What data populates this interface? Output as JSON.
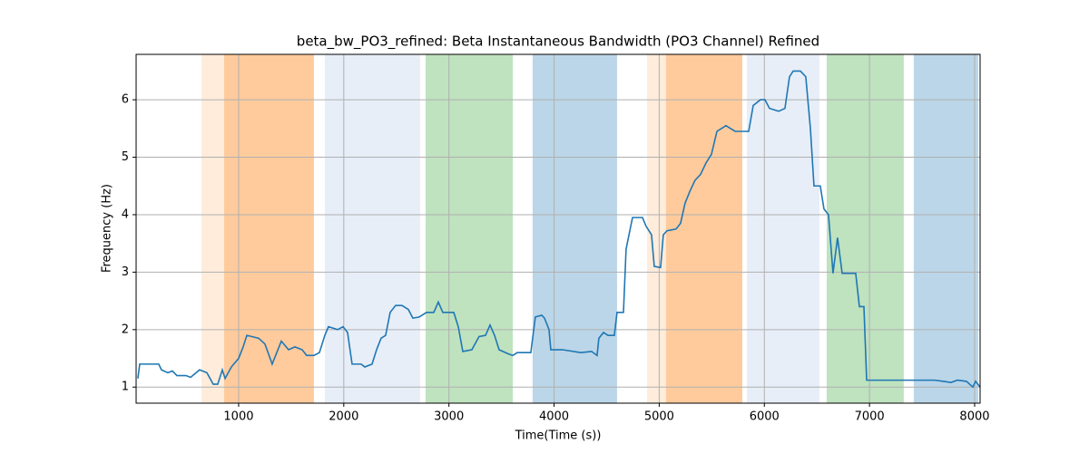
{
  "chart_data": {
    "type": "line",
    "title": "beta_bw_PO3_refined: Beta Instantaneous Bandwidth (PO3 Channel) Refined",
    "xlabel": "Time(Time (s))",
    "ylabel": "Frequency (Hz)",
    "xlim": [
      25,
      8052
    ],
    "ylim": [
      0.72,
      6.79
    ],
    "xticks": [
      1000,
      2000,
      3000,
      4000,
      5000,
      6000,
      7000,
      8000
    ],
    "yticks": [
      1,
      2,
      3,
      4,
      5,
      6
    ],
    "grid": true,
    "spans": [
      {
        "start": 646,
        "end": 1716,
        "color": "#ff7f0e",
        "alpha": 0.15
      },
      {
        "start": 862,
        "end": 1716,
        "color": "#ff7f0e",
        "alpha": 0.3
      },
      {
        "start": 1820,
        "end": 2726,
        "color": "#aec7e8",
        "alpha": 0.3
      },
      {
        "start": 2778,
        "end": 3607,
        "color": "#2ca02c",
        "alpha": 0.3
      },
      {
        "start": 3796,
        "end": 4599,
        "color": "#1f77b4",
        "alpha": 0.3
      },
      {
        "start": 4884,
        "end": 5790,
        "color": "#ff7f0e",
        "alpha": 0.15
      },
      {
        "start": 5065,
        "end": 5790,
        "color": "#ff7f0e",
        "alpha": 0.3
      },
      {
        "start": 5833,
        "end": 6524,
        "color": "#aec7e8",
        "alpha": 0.3
      },
      {
        "start": 6593,
        "end": 7326,
        "color": "#2ca02c",
        "alpha": 0.3
      },
      {
        "start": 7421,
        "end": 8034,
        "color": "#1f77b4",
        "alpha": 0.3
      }
    ],
    "series": [
      {
        "color": "#1f77b4",
        "x": [
          42,
          59,
          240,
          266,
          327,
          370,
          413,
          499,
          543,
          629,
          698,
          758,
          801,
          845,
          871,
          931,
          1000,
          1043,
          1078,
          1190,
          1250,
          1319,
          1406,
          1475,
          1535,
          1604,
          1647,
          1716,
          1768,
          1820,
          1854,
          1941,
          1993,
          2036,
          2079,
          2165,
          2200,
          2269,
          2312,
          2355,
          2398,
          2441,
          2493,
          2554,
          2614,
          2657,
          2718,
          2787,
          2856,
          2899,
          2942,
          3046,
          3089,
          3132,
          3218,
          3287,
          3348,
          3391,
          3434,
          3477,
          3563,
          3607,
          3650,
          3779,
          3822,
          3883,
          3909,
          3952,
          3969,
          4081,
          4254,
          4357,
          4409,
          4426,
          4470,
          4513,
          4573,
          4599,
          4660,
          4685,
          4746,
          4841,
          4875,
          4927,
          4953,
          5013,
          5039,
          5074,
          5160,
          5203,
          5246,
          5290,
          5341,
          5393,
          5445,
          5497,
          5549,
          5635,
          5678,
          5722,
          5851,
          5894,
          5963,
          6006,
          6049,
          6136,
          6196,
          6239,
          6274,
          6343,
          6394,
          6438,
          6472,
          6532,
          6567,
          6610,
          6653,
          6696,
          6740,
          6869,
          6904,
          6947,
          6973,
          7620,
          7706,
          7775,
          7836,
          7922,
          7983,
          8009,
          8052
        ],
        "values": [
          1.15,
          1.4,
          1.4,
          1.3,
          1.25,
          1.28,
          1.2,
          1.2,
          1.17,
          1.3,
          1.25,
          1.05,
          1.05,
          1.3,
          1.15,
          1.35,
          1.5,
          1.7,
          1.9,
          1.85,
          1.75,
          1.4,
          1.8,
          1.65,
          1.7,
          1.65,
          1.55,
          1.55,
          1.6,
          1.9,
          2.05,
          2.0,
          2.05,
          1.95,
          1.4,
          1.4,
          1.35,
          1.4,
          1.65,
          1.85,
          1.9,
          2.3,
          2.42,
          2.42,
          2.35,
          2.2,
          2.22,
          2.3,
          2.3,
          2.48,
          2.3,
          2.3,
          2.05,
          1.62,
          1.65,
          1.88,
          1.9,
          2.08,
          1.9,
          1.65,
          1.58,
          1.55,
          1.6,
          1.6,
          2.22,
          2.25,
          2.2,
          2.0,
          1.65,
          1.65,
          1.6,
          1.62,
          1.55,
          1.85,
          1.95,
          1.9,
          1.9,
          2.3,
          2.3,
          3.4,
          3.95,
          3.95,
          3.8,
          3.65,
          3.1,
          3.08,
          3.65,
          3.72,
          3.75,
          3.85,
          4.2,
          4.4,
          4.6,
          4.7,
          4.9,
          5.05,
          5.45,
          5.55,
          5.5,
          5.45,
          5.45,
          5.9,
          6.0,
          6.0,
          5.85,
          5.8,
          5.85,
          6.4,
          6.5,
          6.5,
          6.4,
          5.5,
          4.5,
          4.5,
          4.1,
          4.0,
          2.98,
          3.6,
          2.98,
          2.98,
          2.4,
          2.4,
          1.12,
          1.12,
          1.1,
          1.08,
          1.12,
          1.1,
          1.0,
          1.1,
          1.0
        ]
      }
    ]
  }
}
